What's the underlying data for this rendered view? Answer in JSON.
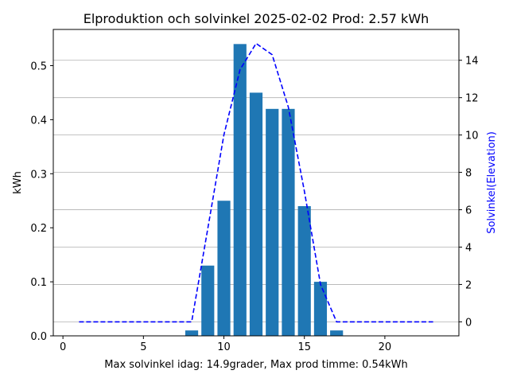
{
  "chart_data": {
    "type": "bar",
    "title": "Elproduktion och solvinkel 2025-02-02 Prod: 2.57 kWh",
    "xlabel": "Max solvinkel idag: 14.9grader, Max prod timme: 0.54kWh",
    "ylabel": "kWh",
    "y2label": "Solvinkel(Elevation)",
    "xlim": [
      -0.6,
      24.6
    ],
    "ylim": [
      0,
      0.567
    ],
    "y2lim": [
      -0.75,
      15.65
    ],
    "xticks": [
      0,
      5,
      10,
      15,
      20
    ],
    "yticks": [
      0.0,
      0.1,
      0.2,
      0.3,
      0.4,
      0.5
    ],
    "y2ticks": [
      0,
      2,
      4,
      6,
      8,
      10,
      12,
      14
    ],
    "grid": "horizontal, secondary axis",
    "bar_color": "#1f77b4",
    "line_color": "#0000ff",
    "series": [
      {
        "type": "bar",
        "x": [
          8,
          9,
          10,
          11,
          12,
          13,
          14,
          15,
          16,
          17
        ],
        "values": [
          0.01,
          0.13,
          0.25,
          0.54,
          0.45,
          0.42,
          0.42,
          0.24,
          0.1,
          0.01
        ]
      },
      {
        "type": "line",
        "style": "dashed",
        "axis": "right",
        "x": [
          1,
          2,
          3,
          4,
          5,
          6,
          7,
          8,
          9,
          10,
          11,
          12,
          13,
          14,
          15,
          16,
          17,
          18,
          19,
          20,
          21,
          22,
          23
        ],
        "values": [
          0,
          0,
          0,
          0,
          0,
          0,
          0,
          0,
          5.0,
          10.0,
          13.5,
          14.9,
          14.3,
          11.5,
          7.0,
          2.0,
          0,
          0,
          0,
          0,
          0,
          0,
          0
        ]
      }
    ]
  }
}
